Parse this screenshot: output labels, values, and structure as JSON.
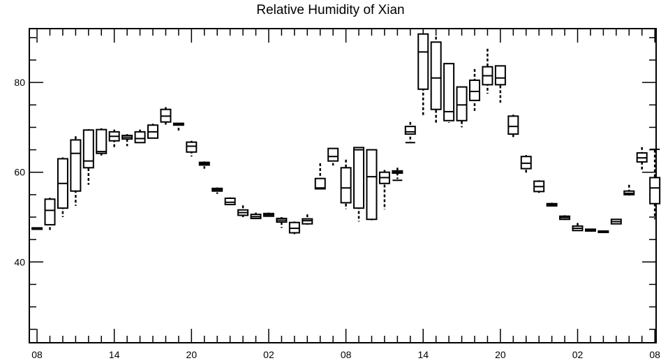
{
  "chart_data": {
    "type": "boxplot",
    "title": "Relative Humidity of Xian",
    "xlabel": "",
    "ylabel": "",
    "ylim": [
      22,
      92
    ],
    "y_ticks": [
      40,
      60,
      80
    ],
    "x_tick_labels": [
      "08",
      "14",
      "20",
      "02",
      "08",
      "14",
      "20",
      "02",
      "08"
    ],
    "x_range": [
      -0.6,
      48.1
    ],
    "x_tick_positions": [
      0,
      6,
      12,
      18,
      24,
      30,
      36,
      42,
      48
    ],
    "grid": false,
    "boxes": [
      {
        "x": 0,
        "min": 47.2,
        "q1": 47.3,
        "median": 47.4,
        "q3": 47.6,
        "max": 47.7
      },
      {
        "x": 1,
        "min": 47.0,
        "q1": 48.3,
        "median": 51.5,
        "q3": 54.0,
        "max": 54.3
      },
      {
        "x": 2,
        "min": 50.0,
        "q1": 52.0,
        "median": 57.5,
        "q3": 63.0,
        "max": 63.3
      },
      {
        "x": 3,
        "min": 52.5,
        "q1": 55.8,
        "median": 64.2,
        "q3": 67.2,
        "max": 68.0
      },
      {
        "x": 4,
        "min": 57.2,
        "q1": 61.0,
        "median": 62.5,
        "q3": 69.4,
        "max": 69.6
      },
      {
        "x": 5,
        "min": 63.6,
        "q1": 64.2,
        "median": 64.6,
        "q3": 69.5,
        "max": 69.8
      },
      {
        "x": 6,
        "min": 65.5,
        "q1": 67.0,
        "median": 68.0,
        "q3": 69.0,
        "max": 69.5
      },
      {
        "x": 7,
        "min": 65.8,
        "q1": 67.4,
        "median": 67.8,
        "q3": 68.2,
        "max": 68.5
      },
      {
        "x": 8,
        "min": 66.5,
        "q1": 66.6,
        "median": 67.5,
        "q3": 69.0,
        "max": 69.5
      },
      {
        "x": 9,
        "min": 67.5,
        "q1": 67.6,
        "median": 69.0,
        "q3": 70.5,
        "max": 70.8
      },
      {
        "x": 10,
        "min": 70.5,
        "q1": 71.2,
        "median": 72.5,
        "q3": 74.0,
        "max": 74.5
      },
      {
        "x": 11,
        "min": 69.0,
        "q1": 70.5,
        "median": 70.7,
        "q3": 70.9,
        "max": 71.0
      },
      {
        "x": 12,
        "min": 63.5,
        "q1": 64.5,
        "median": 65.8,
        "q3": 66.7,
        "max": 67.0
      },
      {
        "x": 13,
        "min": 60.8,
        "q1": 61.6,
        "median": 61.9,
        "q3": 62.2,
        "max": 62.4
      },
      {
        "x": 14,
        "min": 55.2,
        "q1": 55.8,
        "median": 56.1,
        "q3": 56.4,
        "max": 56.6
      },
      {
        "x": 15,
        "min": 52.6,
        "q1": 52.8,
        "median": 53.3,
        "q3": 54.2,
        "max": 54.4
      },
      {
        "x": 16,
        "min": 50.0,
        "q1": 50.4,
        "median": 51.0,
        "q3": 51.6,
        "max": 52.6
      },
      {
        "x": 17,
        "min": 49.6,
        "q1": 49.7,
        "median": 50.1,
        "q3": 50.6,
        "max": 51.0
      },
      {
        "x": 18,
        "min": 50.0,
        "q1": 50.2,
        "median": 50.5,
        "q3": 50.8,
        "max": 51.0
      },
      {
        "x": 19,
        "min": 47.6,
        "q1": 48.9,
        "median": 49.3,
        "q3": 49.7,
        "max": 50.0
      },
      {
        "x": 20,
        "min": 45.8,
        "q1": 46.5,
        "median": 47.5,
        "q3": 48.8,
        "max": 49.0
      },
      {
        "x": 21,
        "min": 48.3,
        "q1": 48.5,
        "median": 49.2,
        "q3": 49.6,
        "max": 50.6
      },
      {
        "x": 22,
        "min": 56.2,
        "q1": 56.3,
        "median": 56.5,
        "q3": 58.6,
        "max": 62.0
      },
      {
        "x": 23,
        "min": 61.5,
        "q1": 62.5,
        "median": 63.5,
        "q3": 65.3,
        "max": 65.3
      },
      {
        "x": 24,
        "min": 51.8,
        "q1": 53.2,
        "median": 56.5,
        "q3": 61.0,
        "max": 62.8
      },
      {
        "x": 25,
        "min": 49.0,
        "q1": 52.0,
        "median": 65.0,
        "q3": 65.5,
        "max": 65.5
      },
      {
        "x": 26,
        "min": 49.3,
        "q1": 49.5,
        "median": 59.0,
        "q3": 65.0,
        "max": 65.0
      },
      {
        "x": 27,
        "min": 51.7,
        "q1": 57.5,
        "median": 58.8,
        "q3": 60.0,
        "max": 60.5
      },
      {
        "x": 28,
        "min": 58.5,
        "q1": 59.8,
        "median": 60.0,
        "q3": 60.3,
        "max": 61.0
      },
      {
        "x": 29,
        "min": 66.8,
        "q1": 68.5,
        "median": 69.0,
        "q3": 70.2,
        "max": 71.2
      },
      {
        "x": 30,
        "min": 72.5,
        "q1": 78.5,
        "median": 86.8,
        "q3": 90.8,
        "max": 90.8
      },
      {
        "x": 31,
        "min": 71.0,
        "q1": 74.0,
        "median": 81.0,
        "q3": 89.0,
        "max": 90.2
      },
      {
        "x": 32,
        "min": 71.0,
        "q1": 71.5,
        "median": 73.5,
        "q3": 84.2,
        "max": 84.2
      },
      {
        "x": 33,
        "min": 70.0,
        "q1": 71.5,
        "median": 75.0,
        "q3": 79.0,
        "max": 79.0
      },
      {
        "x": 34,
        "min": 73.5,
        "q1": 76.0,
        "median": 78.0,
        "q3": 80.5,
        "max": 83.0
      },
      {
        "x": 35,
        "min": 77.5,
        "q1": 79.5,
        "median": 81.5,
        "q3": 83.5,
        "max": 87.5
      },
      {
        "x": 36,
        "min": 75.5,
        "q1": 79.5,
        "median": 81.0,
        "q3": 83.7,
        "max": 83.7
      },
      {
        "x": 37,
        "min": 67.8,
        "q1": 68.5,
        "median": 70.2,
        "q3": 72.5,
        "max": 72.8
      },
      {
        "x": 38,
        "min": 59.8,
        "q1": 60.8,
        "median": 62.0,
        "q3": 63.5,
        "max": 63.8
      },
      {
        "x": 39,
        "min": 55.0,
        "q1": 55.7,
        "median": 56.8,
        "q3": 58.0,
        "max": 58.2
      },
      {
        "x": 40,
        "min": 52.4,
        "q1": 52.5,
        "median": 52.8,
        "q3": 53.0,
        "max": 53.2
      },
      {
        "x": 41,
        "min": 49.3,
        "q1": 49.5,
        "median": 49.9,
        "q3": 50.2,
        "max": 50.4
      },
      {
        "x": 42,
        "min": 47.0,
        "q1": 47.0,
        "median": 47.5,
        "q3": 48.0,
        "max": 48.7
      },
      {
        "x": 43,
        "min": 46.8,
        "q1": 46.9,
        "median": 47.1,
        "q3": 47.3,
        "max": 47.4
      },
      {
        "x": 44,
        "min": 46.6,
        "q1": 46.7,
        "median": 46.8,
        "q3": 46.9,
        "max": 47.0
      },
      {
        "x": 45,
        "min": 48.4,
        "q1": 48.5,
        "median": 49.0,
        "q3": 49.5,
        "max": 49.6
      },
      {
        "x": 46,
        "min": 54.8,
        "q1": 55.0,
        "median": 55.3,
        "q3": 55.8,
        "max": 57.2
      },
      {
        "x": 47,
        "min": 60.5,
        "q1": 62.3,
        "median": 63.2,
        "q3": 64.3,
        "max": 65.6
      },
      {
        "x": 48,
        "min": 49.5,
        "q1": 53.0,
        "median": 56.5,
        "q3": 58.8,
        "max": 65.0
      }
    ],
    "median_ticks": [
      {
        "x": 29.0,
        "value": 66.6
      },
      {
        "x": 28.0,
        "value": 58.2
      },
      {
        "x": 48.0,
        "value": 65.1
      }
    ]
  }
}
